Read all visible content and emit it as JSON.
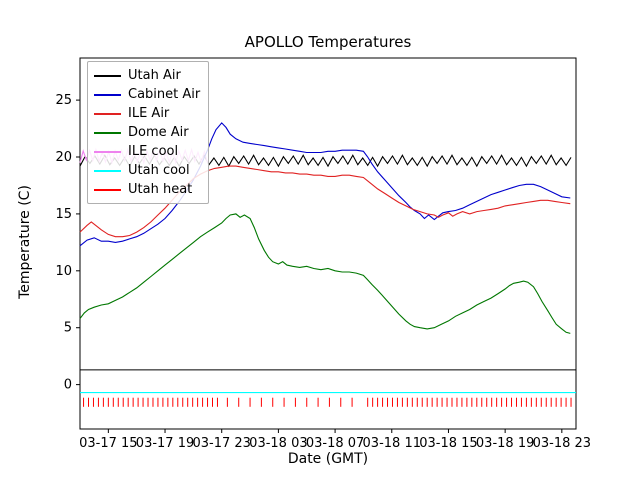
{
  "figure": {
    "background": "#ffffff",
    "frame_color": "#000000"
  },
  "chart_data": {
    "type": "line",
    "title": "APOLLO Temperatures",
    "xlabel": "Date (GMT)",
    "ylabel": "Temperature (C)",
    "x_unit": "hours since 03-17 13:00 GMT",
    "xlim": [
      0,
      35
    ],
    "ylim": [
      -3.9,
      28.7
    ],
    "grid": false,
    "legend_position": "upper left",
    "x_ticks": [
      {
        "x": 2,
        "label": "03-17 15"
      },
      {
        "x": 6,
        "label": "03-17 19"
      },
      {
        "x": 10,
        "label": "03-17 23"
      },
      {
        "x": 14,
        "label": "03-18 03"
      },
      {
        "x": 18,
        "label": "03-18 07"
      },
      {
        "x": 22,
        "label": "03-18 11"
      },
      {
        "x": 26,
        "label": "03-18 15"
      },
      {
        "x": 30,
        "label": "03-18 19"
      },
      {
        "x": 34,
        "label": "03-18 23"
      }
    ],
    "y_ticks": [
      0,
      5,
      10,
      15,
      20,
      25
    ],
    "series": [
      {
        "name": "Utah Air",
        "color": "#000000",
        "style": "sawtooth",
        "sawtooth": {
          "x_start": 0,
          "x_end": 34.9,
          "period": 0.7,
          "y_min": 19.2,
          "y_max": 20.15
        }
      },
      {
        "name": "ILE cool",
        "color": "#ee82ee",
        "style": "sawtooth",
        "sawtooth": {
          "x_start": 0,
          "x_end": 9.2,
          "period": 0.45,
          "y_min": 19.5,
          "y_max": 20.65
        }
      },
      {
        "name": "Cabinet Air",
        "color": "#0000cc",
        "style": "points",
        "points": [
          [
            0,
            12.2
          ],
          [
            0.5,
            12.7
          ],
          [
            1,
            12.9
          ],
          [
            1.5,
            12.6
          ],
          [
            2,
            12.6
          ],
          [
            2.5,
            12.5
          ],
          [
            3,
            12.6
          ],
          [
            3.5,
            12.8
          ],
          [
            4,
            13.0
          ],
          [
            4.5,
            13.3
          ],
          [
            5,
            13.7
          ],
          [
            5.5,
            14.1
          ],
          [
            6,
            14.6
          ],
          [
            6.5,
            15.3
          ],
          [
            7,
            16.1
          ],
          [
            7.5,
            17.0
          ],
          [
            8,
            18.0
          ],
          [
            8.5,
            19.2
          ],
          [
            9,
            20.6
          ],
          [
            9.3,
            21.6
          ],
          [
            9.6,
            22.4
          ],
          [
            10,
            23.0
          ],
          [
            10.3,
            22.6
          ],
          [
            10.6,
            22.0
          ],
          [
            11,
            21.6
          ],
          [
            11.5,
            21.3
          ],
          [
            12,
            21.2
          ],
          [
            12.5,
            21.1
          ],
          [
            13,
            21.0
          ],
          [
            13.5,
            20.9
          ],
          [
            14,
            20.8
          ],
          [
            14.5,
            20.7
          ],
          [
            15,
            20.6
          ],
          [
            15.5,
            20.5
          ],
          [
            16,
            20.4
          ],
          [
            16.5,
            20.4
          ],
          [
            17,
            20.4
          ],
          [
            17.5,
            20.5
          ],
          [
            18,
            20.5
          ],
          [
            18.5,
            20.6
          ],
          [
            19,
            20.6
          ],
          [
            19.5,
            20.6
          ],
          [
            20,
            20.5
          ],
          [
            20.3,
            20.0
          ],
          [
            20.6,
            19.4
          ],
          [
            21,
            18.7
          ],
          [
            21.5,
            18.0
          ],
          [
            22,
            17.3
          ],
          [
            22.5,
            16.6
          ],
          [
            23,
            16.0
          ],
          [
            23.3,
            15.6
          ],
          [
            23.6,
            15.3
          ],
          [
            24,
            15.0
          ],
          [
            24.3,
            14.6
          ],
          [
            24.6,
            14.9
          ],
          [
            25,
            14.5
          ],
          [
            25.3,
            14.8
          ],
          [
            25.6,
            15.1
          ],
          [
            26,
            15.2
          ],
          [
            26.5,
            15.3
          ],
          [
            27,
            15.5
          ],
          [
            27.5,
            15.8
          ],
          [
            28,
            16.1
          ],
          [
            28.5,
            16.4
          ],
          [
            29,
            16.7
          ],
          [
            29.5,
            16.9
          ],
          [
            30,
            17.1
          ],
          [
            30.5,
            17.3
          ],
          [
            31,
            17.5
          ],
          [
            31.5,
            17.6
          ],
          [
            32,
            17.6
          ],
          [
            32.5,
            17.4
          ],
          [
            33,
            17.1
          ],
          [
            33.5,
            16.8
          ],
          [
            34,
            16.5
          ],
          [
            34.6,
            16.4
          ]
        ]
      },
      {
        "name": "ILE Air",
        "color": "#e02222",
        "style": "points",
        "points": [
          [
            0,
            13.4
          ],
          [
            0.5,
            14.0
          ],
          [
            0.8,
            14.3
          ],
          [
            1.1,
            14.0
          ],
          [
            1.5,
            13.6
          ],
          [
            2,
            13.2
          ],
          [
            2.5,
            13.0
          ],
          [
            3,
            13.0
          ],
          [
            3.5,
            13.1
          ],
          [
            4,
            13.4
          ],
          [
            4.5,
            13.8
          ],
          [
            5,
            14.3
          ],
          [
            5.5,
            14.9
          ],
          [
            6,
            15.5
          ],
          [
            6.5,
            16.2
          ],
          [
            7,
            16.9
          ],
          [
            7.5,
            17.5
          ],
          [
            8,
            18.1
          ],
          [
            8.5,
            18.5
          ],
          [
            9,
            18.8
          ],
          [
            9.5,
            19.0
          ],
          [
            10,
            19.1
          ],
          [
            10.5,
            19.2
          ],
          [
            11,
            19.2
          ],
          [
            11.5,
            19.1
          ],
          [
            12,
            19.0
          ],
          [
            12.5,
            18.9
          ],
          [
            13,
            18.8
          ],
          [
            13.5,
            18.7
          ],
          [
            14,
            18.7
          ],
          [
            14.5,
            18.6
          ],
          [
            15,
            18.6
          ],
          [
            15.5,
            18.5
          ],
          [
            16,
            18.5
          ],
          [
            16.5,
            18.4
          ],
          [
            17,
            18.4
          ],
          [
            17.5,
            18.3
          ],
          [
            18,
            18.3
          ],
          [
            18.5,
            18.4
          ],
          [
            19,
            18.4
          ],
          [
            19.5,
            18.3
          ],
          [
            20,
            18.2
          ],
          [
            20.3,
            17.9
          ],
          [
            20.6,
            17.6
          ],
          [
            21,
            17.2
          ],
          [
            21.5,
            16.8
          ],
          [
            22,
            16.4
          ],
          [
            22.5,
            16.0
          ],
          [
            23,
            15.7
          ],
          [
            23.5,
            15.4
          ],
          [
            24,
            15.2
          ],
          [
            24.5,
            15.0
          ],
          [
            25,
            14.9
          ],
          [
            25.3,
            14.7
          ],
          [
            25.6,
            14.9
          ],
          [
            26,
            15.1
          ],
          [
            26.3,
            14.8
          ],
          [
            26.6,
            15.0
          ],
          [
            27,
            15.2
          ],
          [
            27.5,
            15.0
          ],
          [
            28,
            15.2
          ],
          [
            28.5,
            15.3
          ],
          [
            29,
            15.4
          ],
          [
            29.5,
            15.5
          ],
          [
            30,
            15.7
          ],
          [
            30.5,
            15.8
          ],
          [
            31,
            15.9
          ],
          [
            31.5,
            16.0
          ],
          [
            32,
            16.1
          ],
          [
            32.5,
            16.2
          ],
          [
            33,
            16.2
          ],
          [
            33.5,
            16.1
          ],
          [
            34,
            16.0
          ],
          [
            34.6,
            15.9
          ]
        ]
      },
      {
        "name": "Dome Air",
        "color": "#007700",
        "style": "points",
        "points": [
          [
            0,
            5.8
          ],
          [
            0.3,
            6.3
          ],
          [
            0.6,
            6.6
          ],
          [
            1,
            6.8
          ],
          [
            1.5,
            7.0
          ],
          [
            2,
            7.1
          ],
          [
            2.5,
            7.4
          ],
          [
            3,
            7.7
          ],
          [
            3.5,
            8.1
          ],
          [
            4,
            8.5
          ],
          [
            4.5,
            9.0
          ],
          [
            5,
            9.5
          ],
          [
            5.5,
            10.0
          ],
          [
            6,
            10.5
          ],
          [
            6.5,
            11.0
          ],
          [
            7,
            11.5
          ],
          [
            7.5,
            12.0
          ],
          [
            8,
            12.5
          ],
          [
            8.5,
            13.0
          ],
          [
            9,
            13.4
          ],
          [
            9.5,
            13.8
          ],
          [
            10,
            14.2
          ],
          [
            10.3,
            14.6
          ],
          [
            10.6,
            14.9
          ],
          [
            11,
            15.0
          ],
          [
            11.3,
            14.7
          ],
          [
            11.6,
            14.9
          ],
          [
            12,
            14.6
          ],
          [
            12.3,
            13.8
          ],
          [
            12.6,
            12.8
          ],
          [
            13,
            11.8
          ],
          [
            13.3,
            11.2
          ],
          [
            13.6,
            10.8
          ],
          [
            14,
            10.6
          ],
          [
            14.3,
            10.8
          ],
          [
            14.6,
            10.5
          ],
          [
            15,
            10.4
          ],
          [
            15.5,
            10.3
          ],
          [
            16,
            10.4
          ],
          [
            16.5,
            10.2
          ],
          [
            17,
            10.1
          ],
          [
            17.5,
            10.2
          ],
          [
            18,
            10.0
          ],
          [
            18.5,
            9.9
          ],
          [
            19,
            9.9
          ],
          [
            19.5,
            9.8
          ],
          [
            20,
            9.6
          ],
          [
            20.3,
            9.2
          ],
          [
            20.6,
            8.8
          ],
          [
            21,
            8.3
          ],
          [
            21.5,
            7.6
          ],
          [
            22,
            6.9
          ],
          [
            22.5,
            6.2
          ],
          [
            23,
            5.6
          ],
          [
            23.3,
            5.3
          ],
          [
            23.6,
            5.1
          ],
          [
            24,
            5.0
          ],
          [
            24.5,
            4.9
          ],
          [
            25,
            5.0
          ],
          [
            25.5,
            5.3
          ],
          [
            26,
            5.6
          ],
          [
            26.5,
            6.0
          ],
          [
            27,
            6.3
          ],
          [
            27.5,
            6.6
          ],
          [
            28,
            7.0
          ],
          [
            28.5,
            7.3
          ],
          [
            29,
            7.6
          ],
          [
            29.5,
            8.0
          ],
          [
            30,
            8.4
          ],
          [
            30.3,
            8.7
          ],
          [
            30.6,
            8.9
          ],
          [
            31,
            9.0
          ],
          [
            31.3,
            9.1
          ],
          [
            31.6,
            9.0
          ],
          [
            32,
            8.6
          ],
          [
            32.3,
            8.0
          ],
          [
            32.6,
            7.3
          ],
          [
            33,
            6.5
          ],
          [
            33.3,
            5.9
          ],
          [
            33.6,
            5.3
          ],
          [
            34,
            4.9
          ],
          [
            34.3,
            4.6
          ],
          [
            34.6,
            4.5
          ]
        ]
      },
      {
        "name": "Utah cool",
        "color": "#00ffff",
        "style": "hline",
        "y": -0.7
      },
      {
        "name": "Utah heat",
        "color": "#ff0000",
        "style": "pulses",
        "pulse_y": [
          -1.95,
          -1.15
        ],
        "pulse_groups": [
          {
            "from": 0.25,
            "to": 10.0,
            "step": 0.35
          },
          {
            "from": 10.4,
            "to": 20.0,
            "step": 0.8
          },
          {
            "from": 20.3,
            "to": 34.7,
            "step": 0.35
          }
        ]
      }
    ],
    "legend_order": [
      "Utah Air",
      "Cabinet Air",
      "ILE Air",
      "Dome Air",
      "ILE cool",
      "Utah cool",
      "Utah heat"
    ],
    "extra_lines": [
      {
        "color": "#000000",
        "y": 1.3,
        "x_start": 0,
        "x_end": 35
      }
    ]
  }
}
